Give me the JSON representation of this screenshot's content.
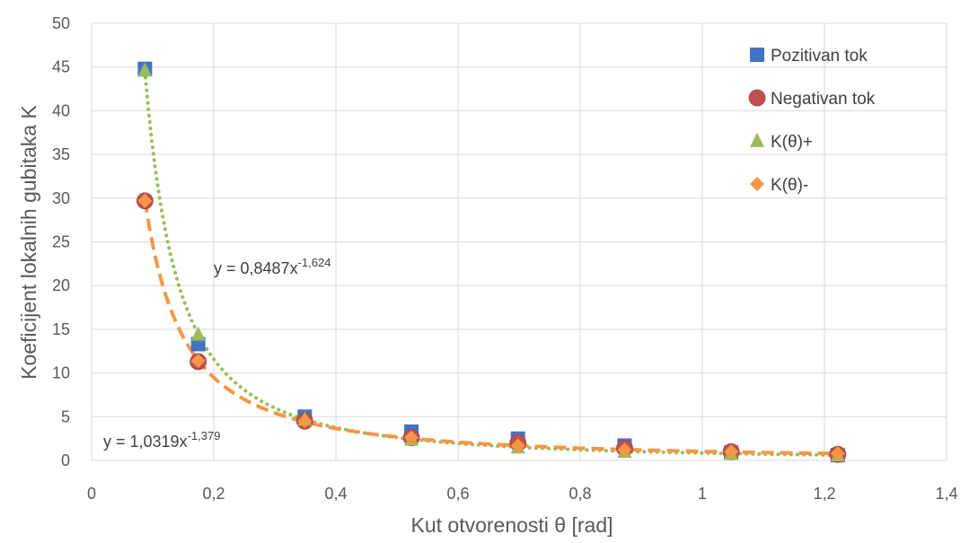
{
  "chart_data": {
    "type": "scatter",
    "xlabel": "Kut otvorenosti θ [rad]",
    "ylabel": "Koeficijent lokalnih gubitaka K",
    "xlim": [
      0,
      1.4
    ],
    "ylim": [
      0,
      50
    ],
    "xticks": [
      0,
      0.2,
      0.4,
      0.6,
      0.8,
      1,
      1.2,
      1.4
    ],
    "xtick_labels": [
      "0",
      "0,2",
      "0,4",
      "0,6",
      "0,8",
      "1",
      "1,2",
      "1,4"
    ],
    "yticks": [
      0,
      5,
      10,
      15,
      20,
      25,
      30,
      35,
      40,
      45,
      50
    ],
    "ytick_labels": [
      "0",
      "5",
      "10",
      "15",
      "20",
      "25",
      "30",
      "35",
      "40",
      "45",
      "50"
    ],
    "grid": true,
    "legend_position": "top-right",
    "series": [
      {
        "name": "Pozitivan tok",
        "marker": "square",
        "color": "#4472c4",
        "x": [
          0.0873,
          0.1745,
          0.349,
          0.5236,
          0.6981,
          0.8727,
          1.0472,
          1.2217
        ],
        "y": [
          44.8,
          13.3,
          5.0,
          3.3,
          2.5,
          1.7,
          0.9,
          0.6
        ]
      },
      {
        "name": "Negativan tok",
        "marker": "circle",
        "color": "#c0504d",
        "x": [
          0.0873,
          0.1745,
          0.349,
          0.5236,
          0.6981,
          0.8727,
          1.0472,
          1.2217
        ],
        "y": [
          29.7,
          11.3,
          4.5,
          2.6,
          2.0,
          1.4,
          1.0,
          0.7
        ]
      },
      {
        "name": "K(θ)+",
        "marker": "triangle",
        "color": "#9bbb59",
        "x": [
          0.0873,
          0.1745,
          0.349,
          0.5236,
          0.6981,
          0.8727,
          1.0472,
          1.2217
        ],
        "y": [
          44.6,
          14.4,
          4.7,
          2.4,
          1.5,
          1.0,
          0.8,
          0.6
        ]
      },
      {
        "name": "K(θ)-",
        "marker": "diamond",
        "color": "#f79646",
        "x": [
          0.0873,
          0.1745,
          0.349,
          0.5236,
          0.6981,
          0.8727,
          1.0472,
          1.2217
        ],
        "y": [
          29.7,
          11.4,
          4.5,
          2.6,
          1.7,
          1.2,
          1.0,
          0.8
        ]
      }
    ],
    "trendlines": [
      {
        "type": "power",
        "a": 0.8487,
        "b": -1.624,
        "color": "#9bbb59",
        "style": "dotted",
        "label": "y = 0,8487x",
        "exponent_label": "-1,624"
      },
      {
        "type": "power",
        "a": 1.0319,
        "b": -1.379,
        "color": "#f79646",
        "style": "dashed",
        "label": "y = 1,0319x",
        "exponent_label": "-1,379"
      }
    ]
  }
}
